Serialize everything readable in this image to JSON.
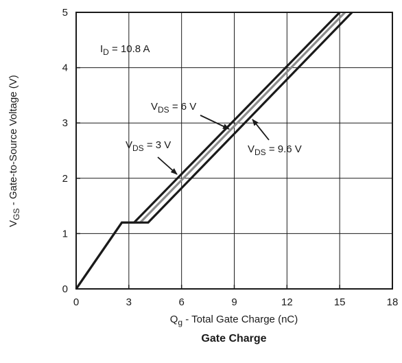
{
  "chart_data": {
    "type": "line",
    "title": "Gate Charge",
    "xlabel": {
      "main": "Q",
      "sub": "g",
      "rest": " - Total Gate Charge (nC)"
    },
    "ylabel": {
      "main": "V",
      "sub": "GS",
      "rest": " - Gate-to-Source Voltage (V)"
    },
    "xlim": [
      0,
      18
    ],
    "ylim": [
      0,
      5
    ],
    "xticks": [
      0,
      3,
      6,
      9,
      12,
      15,
      18
    ],
    "yticks": [
      0,
      1,
      2,
      3,
      4,
      5
    ],
    "grid": true,
    "condition": {
      "main": "I",
      "sub": "D",
      "rest": " = 10.8 A"
    },
    "series": [
      {
        "name": {
          "main": "V",
          "sub": "DS",
          "rest": " = 3 V"
        },
        "color": "#1a1a1a",
        "x": [
          0,
          2.6,
          3.3,
          15.0
        ],
        "y": [
          0,
          1.2,
          1.2,
          5.0
        ]
      },
      {
        "name": {
          "main": "V",
          "sub": "DS",
          "rest": " = 6 V"
        },
        "color": "#8c8c8c",
        "x": [
          0,
          2.6,
          3.65,
          15.3
        ],
        "y": [
          0,
          1.2,
          1.2,
          5.0
        ]
      },
      {
        "name": {
          "main": "V",
          "sub": "DS",
          "rest": " = 9.6 V"
        },
        "color": "#1a1a1a",
        "x": [
          0,
          2.6,
          4.1,
          15.7
        ],
        "y": [
          0,
          1.2,
          1.2,
          5.0
        ]
      }
    ]
  }
}
